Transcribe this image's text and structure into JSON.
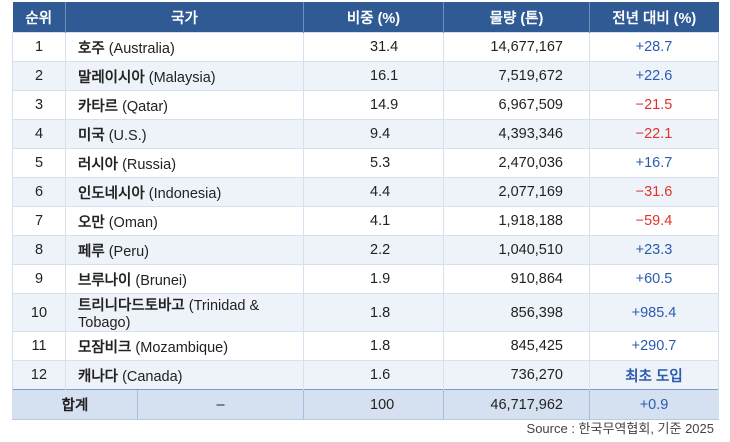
{
  "table": {
    "headers": [
      "순위",
      "국가",
      "비중 (%)",
      "물량 (톤)",
      "전년 대비 (%)"
    ],
    "rows": [
      {
        "rank": "1",
        "country_ko": "호주",
        "country_en": "(Australia)",
        "share": "31.4",
        "volume": "14,677,167",
        "yoy": "+28.7",
        "yoy_type": "pos"
      },
      {
        "rank": "2",
        "country_ko": "말레이시아",
        "country_en": "(Malaysia)",
        "share": "16.1",
        "volume": "7,519,672",
        "yoy": "+22.6",
        "yoy_type": "pos"
      },
      {
        "rank": "3",
        "country_ko": "카타르",
        "country_en": "(Qatar)",
        "share": "14.9",
        "volume": "6,967,509",
        "yoy": "−21.5",
        "yoy_type": "neg"
      },
      {
        "rank": "4",
        "country_ko": "미국",
        "country_en": "(U.S.)",
        "share": "9.4",
        "volume": "4,393,346",
        "yoy": "−22.1",
        "yoy_type": "neg"
      },
      {
        "rank": "5",
        "country_ko": "러시아",
        "country_en": "(Russia)",
        "share": "5.3",
        "volume": "2,470,036",
        "yoy": "+16.7",
        "yoy_type": "pos"
      },
      {
        "rank": "6",
        "country_ko": "인도네시아",
        "country_en": "(Indonesia)",
        "share": "4.4",
        "volume": "2,077,169",
        "yoy": "−31.6",
        "yoy_type": "neg"
      },
      {
        "rank": "7",
        "country_ko": "오만",
        "country_en": "(Oman)",
        "share": "4.1",
        "volume": "1,918,188",
        "yoy": "−59.4",
        "yoy_type": "neg"
      },
      {
        "rank": "8",
        "country_ko": "페루",
        "country_en": "(Peru)",
        "share": "2.2",
        "volume": "1,040,510",
        "yoy": "+23.3",
        "yoy_type": "pos"
      },
      {
        "rank": "9",
        "country_ko": "브루나이",
        "country_en": "(Brunei)",
        "share": "1.9",
        "volume": "910,864",
        "yoy": "+60.5",
        "yoy_type": "pos"
      },
      {
        "rank": "10",
        "country_ko": "트리니다드토바고",
        "country_en": "(Trinidad & Tobago)",
        "share": "1.8",
        "volume": "856,398",
        "yoy": "+985.4",
        "yoy_type": "pos"
      },
      {
        "rank": "11",
        "country_ko": "모잠비크",
        "country_en": "(Mozambique)",
        "share": "1.8",
        "volume": "845,425",
        "yoy": "+290.7",
        "yoy_type": "pos"
      },
      {
        "rank": "12",
        "country_ko": "캐나다",
        "country_en": "(Canada)",
        "share": "1.6",
        "volume": "736,270",
        "yoy": "최초 도입",
        "yoy_type": "new"
      }
    ],
    "total": {
      "label": "합계",
      "dash": "–",
      "share": "100",
      "volume": "46,717,962",
      "yoy": "+0.9"
    }
  },
  "colors": {
    "header_bg": "#2f5a93",
    "positive": "#2b5bb0",
    "negative": "#e0332b",
    "total_bg": "#d5e1f1",
    "stripe_bg": "#eef3fa"
  },
  "source": "Source : 한국무역협회, 기준 2025"
}
